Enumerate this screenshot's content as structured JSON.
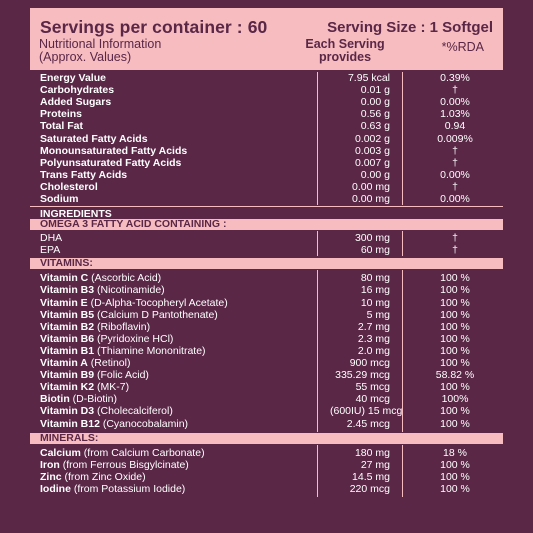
{
  "header": {
    "servings": "Servings per container : 60",
    "serving_size": "Serving Size : 1 Softgel",
    "nutri_line1": "Nutritional Information",
    "nutri_line2": "(Approx. Values)",
    "each_line1": "Each Serving",
    "each_line2": "provides",
    "rda": "*%RDA"
  },
  "nutrition": [
    {
      "name": "Energy Value",
      "value": "7.95 kcal",
      "rda": "0.39%"
    },
    {
      "name": "Carbohydrates",
      "value": "0.01 g",
      "rda": "†"
    },
    {
      "name": "Added Sugars",
      "value": "0.00 g",
      "rda": "0.00%"
    },
    {
      "name": "Proteins",
      "value": "0.56 g",
      "rda": "1.03%"
    },
    {
      "name": "Total Fat",
      "value": "0.63 g",
      "rda": "0.94"
    },
    {
      "name": "Saturated Fatty Acids",
      "value": "0.002 g",
      "rda": "0.009%"
    },
    {
      "name": "Monounsaturated Fatty Acids",
      "value": "0.003 g",
      "rda": "†"
    },
    {
      "name": "Polyunsaturated Fatty Acids",
      "value": "0.007 g",
      "rda": "†"
    },
    {
      "name": "Trans Fatty Acids",
      "value": "0.00 g",
      "rda": "0.00%"
    },
    {
      "name": "Cholesterol",
      "value": "0.00 mg",
      "rda": "†"
    },
    {
      "name": "Sodium",
      "value": "0.00 mg",
      "rda": "0.00%"
    }
  ],
  "ingredients_label": "INGREDIENTS",
  "omega_label": "OMEGA 3 FATTY ACID CONTAINING :",
  "omega": [
    {
      "name": "DHA",
      "value": "300 mg",
      "rda": "†"
    },
    {
      "name": "EPA",
      "value": "60 mg",
      "rda": "†"
    }
  ],
  "vitamins_label": "VITAMINS:",
  "vitamins": [
    {
      "bold": "Vitamin C",
      "rest": " (Ascorbic Acid)",
      "value": "80 mg",
      "rda": "100 %"
    },
    {
      "bold": "Vitamin B3",
      "rest": " (Nicotinamide)",
      "value": "16 mg",
      "rda": "100 %"
    },
    {
      "bold": "Vitamin E",
      "rest": " (D-Alpha-Tocopheryl Acetate)",
      "value": "10 mg",
      "rda": "100 %"
    },
    {
      "bold": "Vitamin B5",
      "rest": " (Calcium D Pantothenate)",
      "value": "5 mg",
      "rda": "100 %"
    },
    {
      "bold": "Vitamin B2",
      "rest": " (Riboflavin)",
      "value": "2.7 mg",
      "rda": "100 %"
    },
    {
      "bold": "Vitamin B6",
      "rest": " (Pyridoxine HCl)",
      "value": "2.3 mg",
      "rda": "100 %"
    },
    {
      "bold": "Vitamin B1",
      "rest": " (Thiamine Mononitrate)",
      "value": "2.0 mg",
      "rda": "100 %"
    },
    {
      "bold": "Vitamin A",
      "rest": " (Retinol)",
      "value": "900 mcg",
      "rda": "100 %"
    },
    {
      "bold": "Vitamin B9",
      "rest": " (Folic Acid)",
      "value": "335.29 mcg",
      "rda": "58.82 %"
    },
    {
      "bold": "Vitamin K2",
      "rest": " (MK-7)",
      "value": "55 mcg",
      "rda": "100 %"
    },
    {
      "bold": "Biotin",
      "rest": " (D-Biotin)",
      "value": "40 mcg",
      "rda": "100%"
    },
    {
      "bold": "Vitamin D3",
      "rest": " (Cholecalciferol)",
      "value": "(600IU) 15 mcg",
      "rda": "100 %"
    },
    {
      "bold": "Vitamin B12",
      "rest": " (Cyanocobalamin)",
      "value": "2.45 mcg",
      "rda": "100 %"
    }
  ],
  "minerals_label": "MINERALS:",
  "minerals": [
    {
      "bold": "Calcium",
      "rest": " (from Calcium Carbonate)",
      "value": "180 mg",
      "rda": "18 %"
    },
    {
      "bold": "Iron",
      "rest": " (from Ferrous Bisgylcinate)",
      "value": "27 mg",
      "rda": "100 %"
    },
    {
      "bold": "Zinc",
      "rest": " (from Zinc Oxide)",
      "value": "14.5 mg",
      "rda": "100 %"
    },
    {
      "bold": "Iodine",
      "rest": " (from Potassium Iodide)",
      "value": "220 mcg",
      "rda": "100 %"
    }
  ],
  "colors": {
    "background": "#5a2747",
    "accent": "#f6bcc0"
  }
}
